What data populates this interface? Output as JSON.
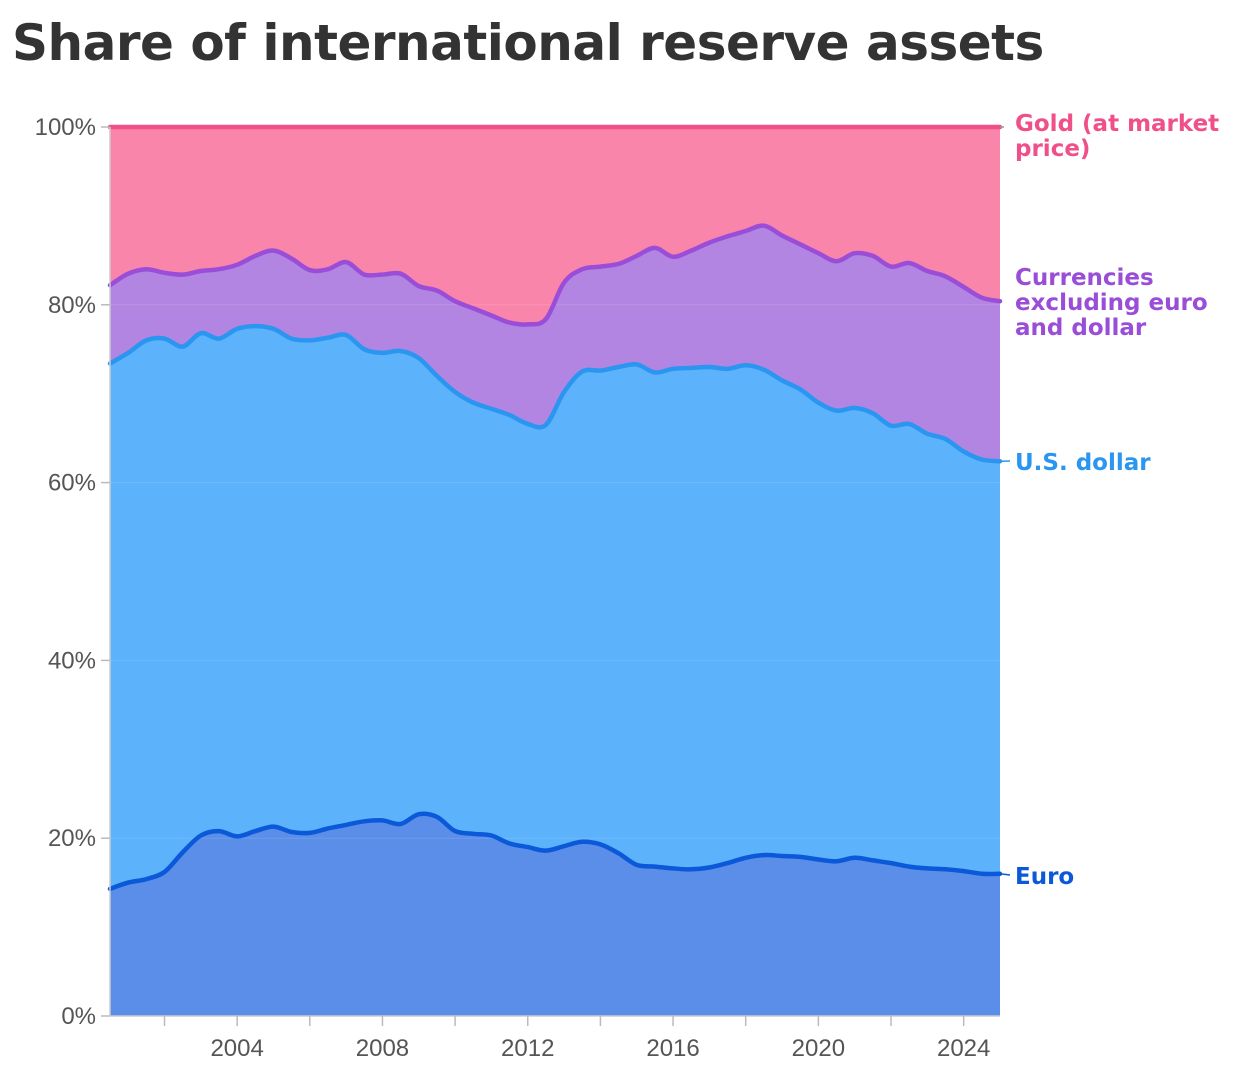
{
  "chart_data": {
    "type": "area",
    "title": "Share of international reserve assets",
    "xlabel": "",
    "ylabel": "",
    "xlim": [
      2000.5,
      2025
    ],
    "ylim": [
      0,
      100
    ],
    "x_ticks": [
      2004,
      2008,
      2012,
      2016,
      2020,
      2024
    ],
    "y_ticks": [
      0,
      20,
      40,
      60,
      80,
      100
    ],
    "y_tick_labels": [
      "0%",
      "20%",
      "40%",
      "60%",
      "80%",
      "100%"
    ],
    "stacked": true,
    "grid": true,
    "legend": "direct labels at right end",
    "x": [
      2000.5,
      2001,
      2001.5,
      2002,
      2002.5,
      2003,
      2003.5,
      2004,
      2004.5,
      2005,
      2005.5,
      2006,
      2006.5,
      2007,
      2007.5,
      2008,
      2008.5,
      2009,
      2009.5,
      2010,
      2010.5,
      2011,
      2011.5,
      2012,
      2012.5,
      2013,
      2013.5,
      2014,
      2014.5,
      2015,
      2015.5,
      2016,
      2016.5,
      2017,
      2017.5,
      2018,
      2018.5,
      2019,
      2019.5,
      2020,
      2020.5,
      2021,
      2021.5,
      2022,
      2022.5,
      2023,
      2023.5,
      2024,
      2024.5,
      2025
    ],
    "series": [
      {
        "name": "Euro",
        "color": "#0b59d9",
        "fill": "#5a8ee8",
        "values": [
          14.3,
          15.0,
          15.4,
          16.2,
          18.4,
          20.3,
          20.8,
          20.2,
          20.8,
          21.3,
          20.7,
          20.6,
          21.1,
          21.5,
          21.9,
          22.0,
          21.6,
          22.7,
          22.4,
          20.8,
          20.5,
          20.3,
          19.4,
          19.0,
          18.6,
          19.1,
          19.6,
          19.3,
          18.3,
          17.0,
          16.8,
          16.6,
          16.5,
          16.7,
          17.2,
          17.8,
          18.1,
          18.0,
          17.9,
          17.6,
          17.4,
          17.8,
          17.5,
          17.2,
          16.8,
          16.6,
          16.5,
          16.3,
          16.0,
          16.0
        ]
      },
      {
        "name": "U.S. dollar",
        "color": "#2a96f0",
        "fill": "#5cb2fb",
        "values": [
          73.4,
          74.6,
          76.0,
          76.2,
          75.3,
          76.8,
          76.2,
          77.3,
          77.6,
          77.3,
          76.2,
          76.0,
          76.3,
          76.6,
          75.0,
          74.6,
          74.8,
          74.0,
          72.0,
          70.2,
          69.0,
          68.3,
          67.6,
          66.6,
          66.5,
          70.2,
          72.5,
          72.6,
          73.0,
          73.3,
          72.4,
          72.8,
          72.9,
          73.0,
          72.8,
          73.2,
          72.7,
          71.5,
          70.5,
          69.0,
          68.1,
          68.4,
          67.8,
          66.4,
          66.6,
          65.5,
          64.9,
          63.5,
          62.6,
          62.4
        ]
      },
      {
        "name": "Currencies excluding euro and dollar",
        "color": "#9a4ed8",
        "fill": "#b385e3",
        "values": [
          82.2,
          83.5,
          84.0,
          83.6,
          83.4,
          83.8,
          84.0,
          84.5,
          85.5,
          86.1,
          85.2,
          83.9,
          84.0,
          84.8,
          83.4,
          83.4,
          83.5,
          82.1,
          81.6,
          80.4,
          79.6,
          78.8,
          78.0,
          77.8,
          78.4,
          82.5,
          84.0,
          84.3,
          84.6,
          85.5,
          86.4,
          85.4,
          86.1,
          87.0,
          87.7,
          88.3,
          88.9,
          87.8,
          86.8,
          85.8,
          84.9,
          85.8,
          85.5,
          84.3,
          84.7,
          83.8,
          83.2,
          82.0,
          80.8,
          80.4
        ]
      },
      {
        "name": "Gold (at market price)",
        "color": "#f0508a",
        "fill": "#fa85aa",
        "values": [
          100,
          100,
          100,
          100,
          100,
          100,
          100,
          100,
          100,
          100,
          100,
          100,
          100,
          100,
          100,
          100,
          100,
          100,
          100,
          100,
          100,
          100,
          100,
          100,
          100,
          100,
          100,
          100,
          100,
          100,
          100,
          100,
          100,
          100,
          100,
          100,
          100,
          100,
          100,
          100,
          100,
          100,
          100,
          100,
          100,
          100,
          100,
          100,
          100,
          100
        ]
      }
    ]
  },
  "labels": {
    "gold_line1": "Gold (at market",
    "gold_line2": "price)",
    "other_line1": "Currencies",
    "other_line2": "excluding euro",
    "other_line3": "and dollar",
    "dollar": "U.S. dollar",
    "euro": "Euro"
  }
}
